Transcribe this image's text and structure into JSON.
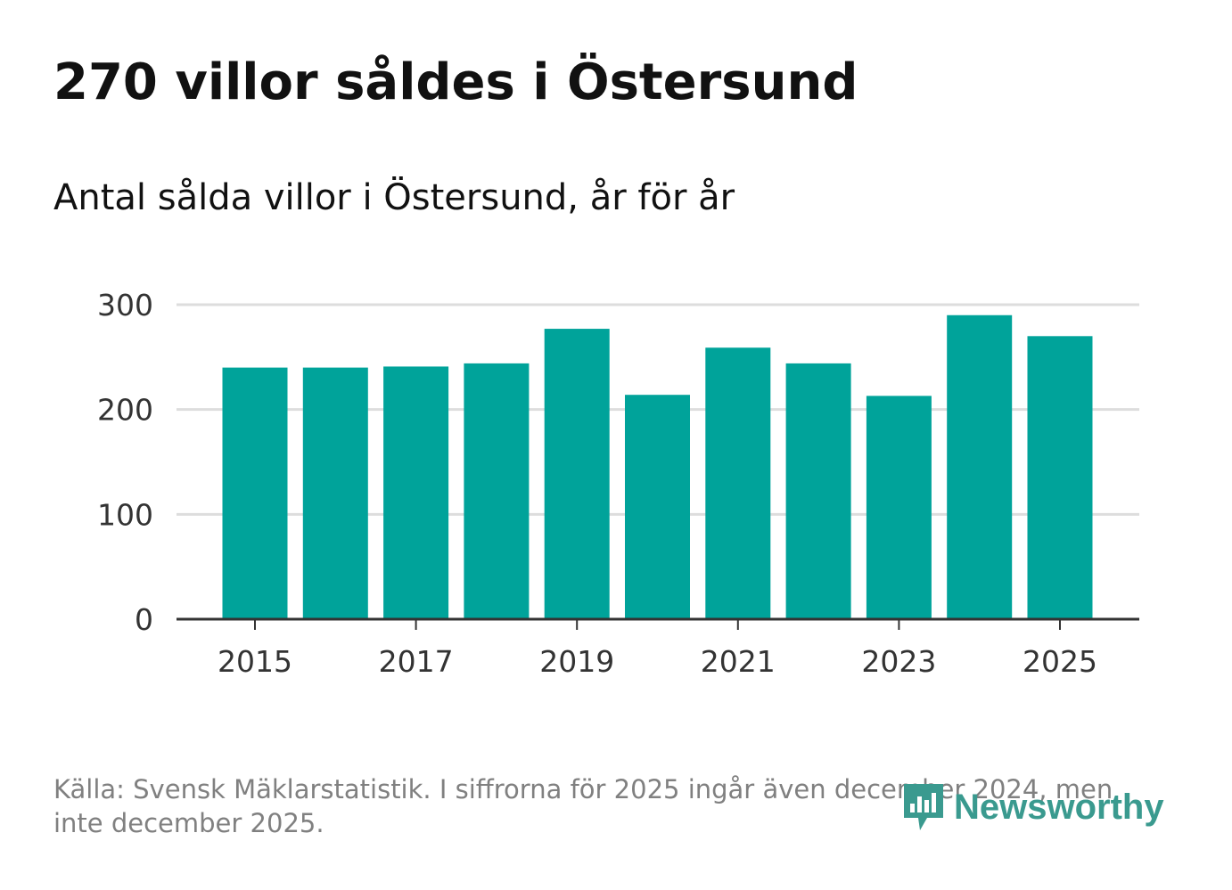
{
  "title": "270 villor såldes i Östersund",
  "subtitle": "Antal sålda villor i Östersund, år för år",
  "footer": "Källa: Svensk Mäklarstatistik. I siffrorna för 2025 ingår även december 2024, men inte december 2025.",
  "brand": {
    "name": "Newsworthy",
    "icon": "newsworthy-logo-icon",
    "color": "#3a9a8f"
  },
  "colors": {
    "bar": "#00a39a",
    "grid": "#dddddd",
    "axis": "#333333",
    "tick_text": "#333333"
  },
  "chart_data": {
    "type": "bar",
    "title": "270 villor såldes i Östersund",
    "subtitle": "Antal sålda villor i Östersund, år för år",
    "xlabel": "",
    "ylabel": "",
    "categories": [
      "2015",
      "2016",
      "2017",
      "2018",
      "2019",
      "2020",
      "2021",
      "2022",
      "2023",
      "2024",
      "2025"
    ],
    "values": [
      240,
      240,
      241,
      244,
      277,
      214,
      259,
      244,
      213,
      290,
      270
    ],
    "ylim": [
      0,
      300
    ],
    "yticks": [
      0,
      100,
      200,
      300
    ],
    "ytick_labels": [
      "0",
      "100",
      "200",
      "300"
    ],
    "xtick_labels": [
      "2015",
      "2017",
      "2019",
      "2021",
      "2023",
      "2025"
    ],
    "grid": true,
    "legend": "none"
  }
}
